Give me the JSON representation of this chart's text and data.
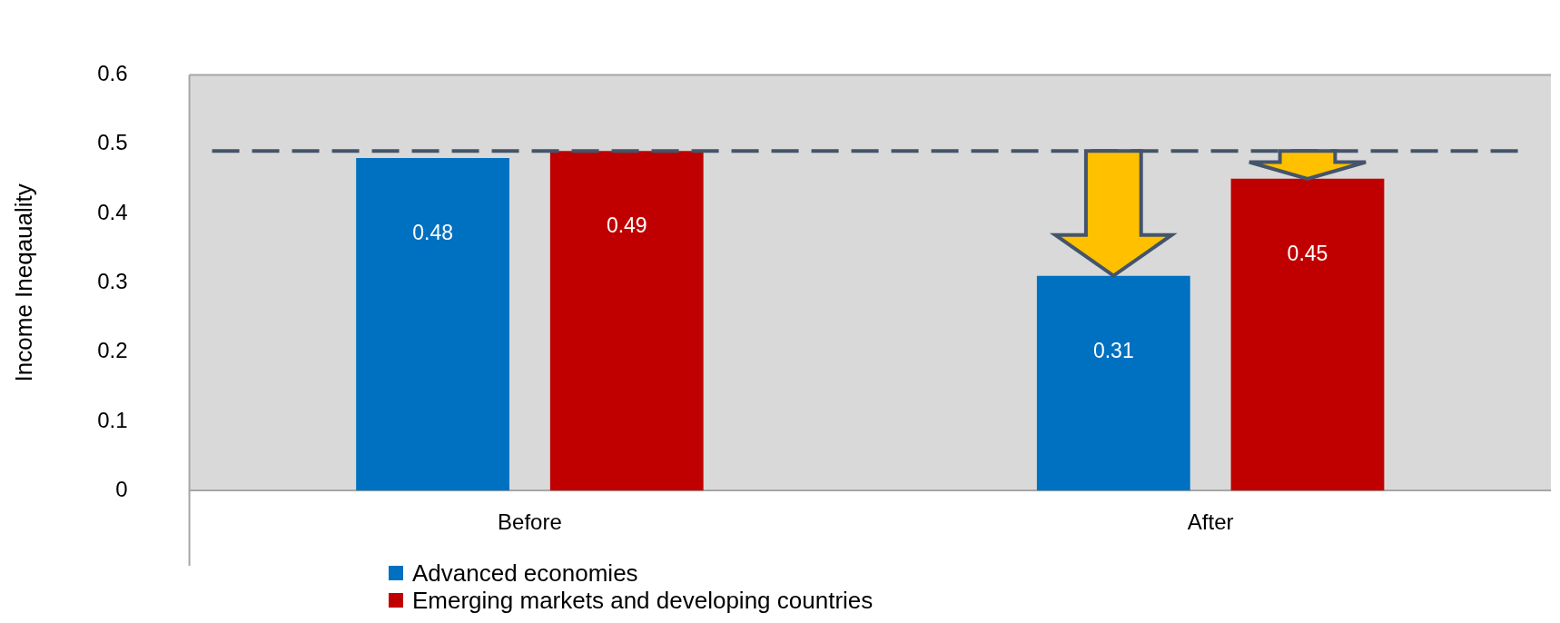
{
  "chart_data": {
    "type": "bar",
    "ylabel": "Income Ineqauality",
    "categories": [
      "Before",
      "After"
    ],
    "series": [
      {
        "name": "Advanced economies",
        "color": "#0070c0",
        "values": [
          0.48,
          0.31
        ]
      },
      {
        "name": "Emerging markets and developing countries",
        "color": "#c00000",
        "values": [
          0.49,
          0.45
        ]
      }
    ],
    "ylim": [
      0,
      0.6
    ],
    "yticks": [
      0,
      0.1,
      0.2,
      0.3,
      0.4,
      0.5,
      0.6
    ],
    "data_labels": true,
    "legend": "bottom left",
    "ref_lines": [
      {
        "axis": "y",
        "value": 0.49,
        "color": "#44546a",
        "line_style": "dashed"
      }
    ]
  }
}
